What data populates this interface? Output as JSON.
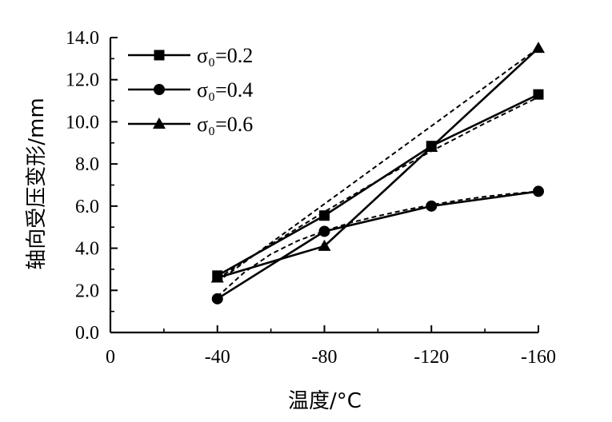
{
  "chart_data": {
    "type": "line",
    "xlabel": "温度/°C",
    "ylabel": "轴向受压变形/mm",
    "x_ticks": [
      "0",
      "-40",
      "-80",
      "-120",
      "-160"
    ],
    "y_ticks": [
      "0.0",
      "2.0",
      "4.0",
      "6.0",
      "8.0",
      "10.0",
      "12.0",
      "14.0"
    ],
    "xlim": [
      0,
      -160
    ],
    "ylim": [
      0,
      14
    ],
    "grid": false,
    "legend_position": "top-left",
    "series": [
      {
        "name": "σ₀=0.2",
        "marker": "square",
        "x": [
          -40,
          -80,
          -120,
          -160
        ],
        "values": [
          2.7,
          5.55,
          8.85,
          11.3
        ],
        "fit_x": [
          -40,
          -60,
          -80,
          -100,
          -120,
          -140,
          -160
        ],
        "fit_values": [
          2.55,
          4.18,
          5.73,
          7.21,
          8.61,
          9.93,
          11.17
        ]
      },
      {
        "name": "σ₀=0.4",
        "marker": "circle",
        "x": [
          -40,
          -80,
          -120,
          -160
        ],
        "values": [
          1.6,
          4.8,
          6.0,
          6.7
        ],
        "fit_x": [
          -40,
          -50,
          -60,
          -70,
          -80,
          -90,
          -100,
          -110,
          -120,
          -130,
          -140,
          -150,
          -160
        ],
        "fit_values": [
          1.7,
          2.85,
          3.72,
          4.35,
          4.82,
          5.22,
          5.53,
          5.81,
          6.06,
          6.27,
          6.45,
          6.59,
          6.7
        ]
      },
      {
        "name": "σ₀=0.6",
        "marker": "triangle",
        "x": [
          -40,
          -80,
          -120,
          -160
        ],
        "values": [
          2.6,
          4.1,
          8.8,
          13.5
        ],
        "fit_x": [
          -40,
          -160
        ],
        "fit_values": [
          2.4,
          13.5
        ]
      }
    ]
  }
}
